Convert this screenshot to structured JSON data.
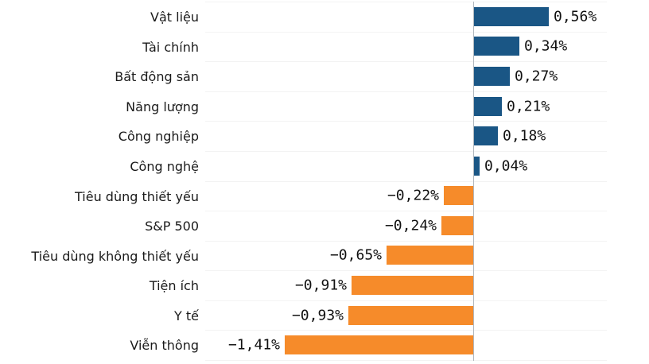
{
  "chart_data": {
    "type": "bar",
    "orientation": "horizontal",
    "title": "",
    "xlabel": "",
    "ylabel": "",
    "categories": [
      "Vật liệu",
      "Tài chính",
      "Bất động sản",
      "Năng lượng",
      "Công nghiệp",
      "Công nghệ",
      "Tiêu dùng thiết yếu",
      "S&P 500",
      "Tiêu dùng không thiết yếu",
      "Tiện ích",
      "Y tế",
      "Viễn thông"
    ],
    "values": [
      0.56,
      0.34,
      0.27,
      0.21,
      0.18,
      0.04,
      -0.22,
      -0.24,
      -0.65,
      -0.91,
      -0.93,
      -1.41
    ],
    "value_labels": [
      "0,56%",
      "0,34%",
      "0,27%",
      "0,21%",
      "0,18%",
      "0,04%",
      "−0,22%",
      "−0,24%",
      "−0,65%",
      "−0,91%",
      "−0,93%",
      "−1,41%"
    ],
    "unit": "%",
    "xlim": [
      -2.0,
      1.0
    ],
    "grid": "row-separators",
    "legend_position": "none",
    "colors": {
      "positive": "#1a5685",
      "negative": "#f68b2a",
      "grid_line": "#f3f3f3",
      "zero_line": "#b0b7bd",
      "category_text": "#1a1a1a",
      "value_text": "#111111",
      "background": "#ffffff"
    }
  }
}
